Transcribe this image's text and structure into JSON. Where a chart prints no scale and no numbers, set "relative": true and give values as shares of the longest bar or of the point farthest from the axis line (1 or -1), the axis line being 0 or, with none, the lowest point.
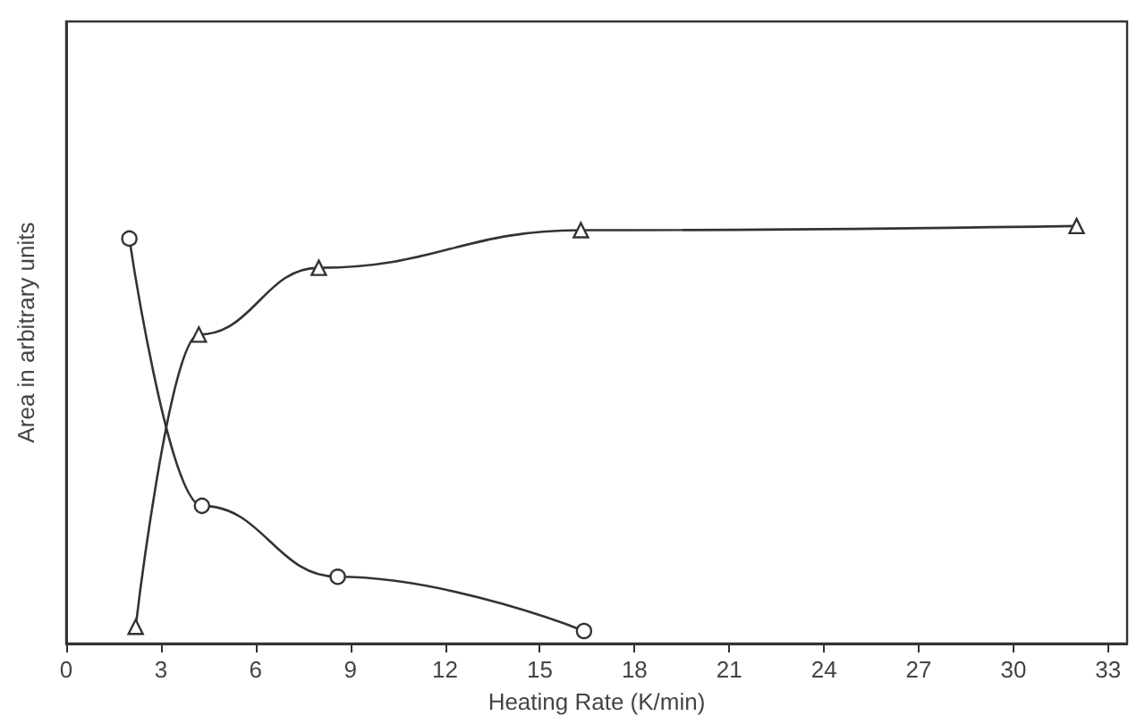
{
  "chart_data": {
    "type": "line",
    "relative": true,
    "xlabel": "Heating Rate (K/min)",
    "ylabel": "Area in arbitrary units",
    "xlim": [
      0,
      33.6
    ],
    "xticks": [
      0,
      3,
      6,
      9,
      12,
      15,
      18,
      21,
      24,
      27,
      30,
      33
    ],
    "grid": false,
    "line_style": "solid",
    "series": [
      {
        "color": "#333333",
        "marker": "triangle",
        "x": [
          2.2,
          4.2,
          8,
          16.3,
          32
        ],
        "values": [
          0.04,
          0.74,
          0.9,
          0.99,
          1
        ]
      },
      {
        "color": "#333333",
        "marker": "circle",
        "x": [
          2,
          4.3,
          8.6,
          16.4
        ],
        "values": [
          0.97,
          0.33,
          0.16,
          0.03
        ]
      }
    ]
  }
}
